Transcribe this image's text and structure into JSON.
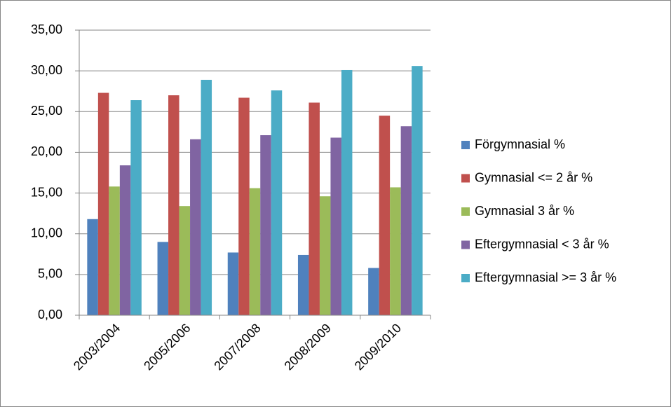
{
  "chart_data": {
    "type": "bar",
    "categories": [
      "2003/2004",
      "2005/2006",
      "2007/2008",
      "2008/2009",
      "2009/2010"
    ],
    "series": [
      {
        "name": "Förgymnasial %",
        "color": "#4f81bd",
        "values": [
          11.8,
          9.0,
          7.7,
          7.4,
          5.8
        ]
      },
      {
        "name": "Gymnasial <= 2 år %",
        "color": "#c0504d",
        "values": [
          27.3,
          27.0,
          26.7,
          26.1,
          24.5
        ]
      },
      {
        "name": "Gymnasial 3 år %",
        "color": "#9bbb59",
        "values": [
          15.8,
          13.4,
          15.6,
          14.6,
          15.7
        ]
      },
      {
        "name": "Eftergymnasial < 3 år %",
        "color": "#8064a2",
        "values": [
          18.4,
          21.6,
          22.1,
          21.8,
          23.2
        ]
      },
      {
        "name": "Eftergymnasial >= 3 år %",
        "color": "#4bacc6",
        "values": [
          26.4,
          28.9,
          27.6,
          30.1,
          30.6
        ]
      }
    ],
    "ylim": [
      0,
      35
    ],
    "yticks": [
      {
        "value": 0,
        "label": "0,00"
      },
      {
        "value": 5,
        "label": "5,00"
      },
      {
        "value": 10,
        "label": "10,00"
      },
      {
        "value": 15,
        "label": "15,00"
      },
      {
        "value": 20,
        "label": "20,00"
      },
      {
        "value": 25,
        "label": "25,00"
      },
      {
        "value": 30,
        "label": "30,00"
      },
      {
        "value": 35,
        "label": "35,00"
      }
    ],
    "grid": true,
    "legend": "right"
  }
}
